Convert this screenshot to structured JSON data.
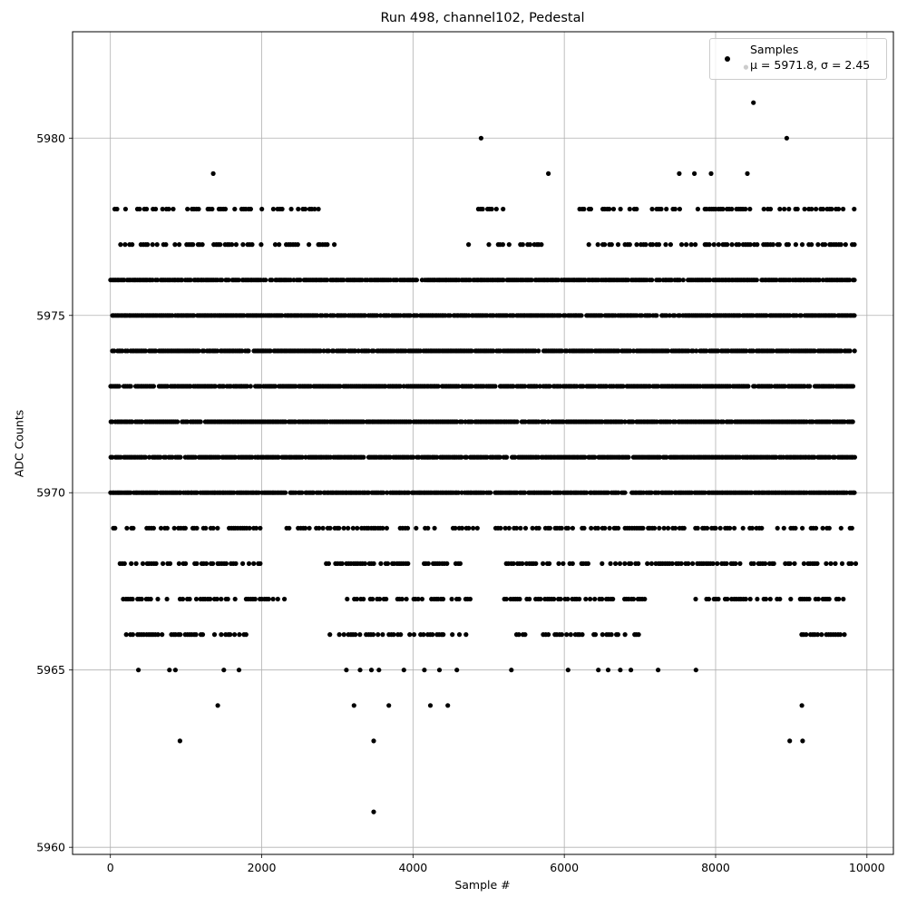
{
  "chart_data": {
    "type": "scatter",
    "title": "Run 498, channel102, Pedestal",
    "xlabel": "Sample #",
    "ylabel": "ADC Counts",
    "xlim": [
      -500,
      10350
    ],
    "ylim": [
      5959.8,
      5983.0
    ],
    "xticks": [
      0,
      2000,
      4000,
      6000,
      8000,
      10000
    ],
    "yticks": [
      5960,
      5965,
      5970,
      5975,
      5980
    ],
    "grid": true,
    "marker_color": "#000000",
    "legend": {
      "placement": "top-right",
      "label": "Samples",
      "stats_text": "μ = 5971.8, σ = 2.45"
    },
    "series": [
      {
        "name": "Samples",
        "n_samples": 9850,
        "dense_levels": [
          5970,
          5971,
          5972,
          5973,
          5974,
          5975,
          5976
        ],
        "sparse_levels": [
          {
            "y": 5969,
            "x_ranges": [
              [
                0,
                2000
              ],
              [
                2300,
                4900
              ],
              [
                5000,
                9850
              ]
            ]
          },
          {
            "y": 5968,
            "x_ranges": [
              [
                60,
                2000
              ],
              [
                2850,
                4800
              ],
              [
                5200,
                9850
              ]
            ]
          },
          {
            "y": 5967,
            "x_ranges": [
              [
                50,
                2300
              ],
              [
                3100,
                4800
              ],
              [
                5200,
                7200
              ],
              [
                7700,
                9700
              ]
            ]
          },
          {
            "y": 5977,
            "x_ranges": [
              [
                100,
                3000
              ],
              [
                4700,
                5700
              ],
              [
                6200,
                9850
              ]
            ]
          },
          {
            "y": 5978,
            "x_ranges": [
              [
                50,
                2800
              ],
              [
                4800,
                5300
              ],
              [
                6200,
                9850
              ]
            ]
          },
          {
            "y": 5966,
            "x_ranges": [
              [
                200,
                1800
              ],
              [
                2900,
                4700
              ],
              [
                5300,
                7000
              ],
              [
                9100,
                9700
              ]
            ]
          }
        ],
        "outliers": [
          {
            "x": 370,
            "y": 5965
          },
          {
            "x": 780,
            "y": 5965
          },
          {
            "x": 860,
            "y": 5965
          },
          {
            "x": 1500,
            "y": 5965
          },
          {
            "x": 1700,
            "y": 5965
          },
          {
            "x": 3120,
            "y": 5965
          },
          {
            "x": 3300,
            "y": 5965
          },
          {
            "x": 3450,
            "y": 5965
          },
          {
            "x": 3550,
            "y": 5965
          },
          {
            "x": 3880,
            "y": 5965
          },
          {
            "x": 4150,
            "y": 5965
          },
          {
            "x": 4350,
            "y": 5965
          },
          {
            "x": 4580,
            "y": 5965
          },
          {
            "x": 5300,
            "y": 5965
          },
          {
            "x": 6050,
            "y": 5965
          },
          {
            "x": 6450,
            "y": 5965
          },
          {
            "x": 6580,
            "y": 5965
          },
          {
            "x": 6740,
            "y": 5965
          },
          {
            "x": 6880,
            "y": 5965
          },
          {
            "x": 7240,
            "y": 5965
          },
          {
            "x": 7740,
            "y": 5965
          },
          {
            "x": 1420,
            "y": 5964
          },
          {
            "x": 3220,
            "y": 5964
          },
          {
            "x": 3680,
            "y": 5964
          },
          {
            "x": 4230,
            "y": 5964
          },
          {
            "x": 4460,
            "y": 5964
          },
          {
            "x": 9140,
            "y": 5964
          },
          {
            "x": 920,
            "y": 5963
          },
          {
            "x": 3480,
            "y": 5963
          },
          {
            "x": 8980,
            "y": 5963
          },
          {
            "x": 9150,
            "y": 5963
          },
          {
            "x": 3480,
            "y": 5961
          },
          {
            "x": 1360,
            "y": 5979
          },
          {
            "x": 5790,
            "y": 5979
          },
          {
            "x": 7520,
            "y": 5979
          },
          {
            "x": 7720,
            "y": 5979
          },
          {
            "x": 7940,
            "y": 5979
          },
          {
            "x": 8420,
            "y": 5979
          },
          {
            "x": 4900,
            "y": 5980
          },
          {
            "x": 8940,
            "y": 5980
          },
          {
            "x": 8500,
            "y": 5981
          },
          {
            "x": 8400,
            "y": 5982
          }
        ]
      }
    ]
  }
}
